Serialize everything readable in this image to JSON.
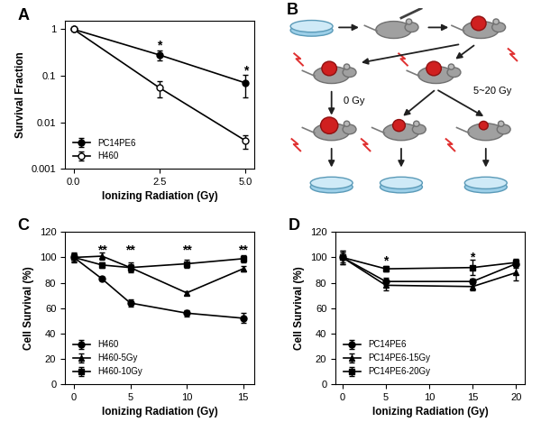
{
  "chart_data": [
    {
      "type": "line",
      "title": "A",
      "x_label": "Ionizing Radiation (Gy)",
      "y_label": "Survival Fraction",
      "log": "y",
      "xlim": [
        -0.25,
        5.25
      ],
      "xticks": [
        {
          "value": 0,
          "label": "0.0"
        },
        {
          "value": 2.5,
          "label": "2.5"
        },
        {
          "value": 5,
          "label": "5.0"
        }
      ],
      "ylim": [
        0.001,
        1.5
      ],
      "yticks": [
        0.001,
        0.01,
        0.1,
        1
      ],
      "legend": "lower left",
      "x": [
        0,
        2.5,
        5
      ],
      "series": [
        {
          "name": "PC14PE6",
          "color": "#000000",
          "marker": "circle",
          "values": [
            1,
            0.28,
            0.07
          ],
          "errors": [
            0.03,
            0.07,
            0.035
          ]
        },
        {
          "name": "H460",
          "color": "#000000",
          "marker": "open_circle",
          "values": [
            1,
            0.055,
            0.004
          ],
          "errors": [
            0.03,
            0.02,
            0.0013
          ]
        }
      ],
      "annotations": [
        {
          "text": "*",
          "x": 2.5,
          "y": 0.45
        },
        {
          "text": "*",
          "x": 5,
          "y": 0.13
        }
      ]
    },
    {
      "type": "diagram",
      "title": "B",
      "labels": [
        "0 Gy",
        "5~20 Gy"
      ]
    },
    {
      "type": "line",
      "title": "C",
      "x_label": "Ionizing Radiation (Gy)",
      "y_label": "Cell Survival (%)",
      "xlim": [
        -0.8,
        16
      ],
      "xticks": [
        0,
        5,
        10,
        15
      ],
      "ylim": [
        0,
        120
      ],
      "yticks": [
        0,
        20,
        40,
        60,
        80,
        100,
        120
      ],
      "legend": "lower left",
      "x": [
        0,
        2.5,
        5,
        10,
        15
      ],
      "series": [
        {
          "name": "H460",
          "color": "#000000",
          "marker": "circle",
          "values": [
            100,
            83,
            64,
            56,
            52
          ],
          "errors": [
            3,
            1.5,
            3,
            2.5,
            4
          ]
        },
        {
          "name": "H460-5Gy",
          "color": "#000000",
          "marker": "triangle",
          "values": [
            100,
            101,
            92,
            72,
            91
          ],
          "errors": [
            3,
            3,
            3,
            1.5,
            2
          ]
        },
        {
          "name": "H460-10Gy",
          "color": "#000000",
          "marker": "square",
          "values": [
            100,
            94,
            92,
            95,
            99
          ],
          "errors": [
            4,
            2,
            4,
            3,
            3
          ]
        }
      ],
      "annotations": [
        {
          "text": "**",
          "x": 2.5,
          "y": 106
        },
        {
          "text": "**",
          "x": 5,
          "y": 106
        },
        {
          "text": "**",
          "x": 10,
          "y": 106
        },
        {
          "text": "**",
          "x": 15,
          "y": 106
        }
      ]
    },
    {
      "type": "line",
      "title": "D",
      "x_label": "Ionizing Radiation (Gy)",
      "y_label": "Cell Survival (%)",
      "xlim": [
        -0.8,
        21
      ],
      "xticks": [
        0,
        5,
        10,
        15,
        20
      ],
      "ylim": [
        0,
        120
      ],
      "yticks": [
        0,
        20,
        40,
        60,
        80,
        100,
        120
      ],
      "legend": "lower left",
      "x": [
        0,
        5,
        15,
        20
      ],
      "series": [
        {
          "name": "PC14PE6",
          "color": "#000000",
          "marker": "circle",
          "values": [
            100,
            81,
            81,
            95
          ],
          "errors": [
            5,
            3,
            2,
            3
          ]
        },
        {
          "name": "PC14PE6-15Gy",
          "color": "#000000",
          "marker": "triangle",
          "values": [
            100,
            78,
            77,
            88
          ],
          "errors": [
            5,
            4,
            3,
            6
          ]
        },
        {
          "name": "PC14PE6-20Gy",
          "color": "#000000",
          "marker": "square",
          "values": [
            100,
            91,
            92,
            96
          ],
          "errors": [
            4,
            2,
            6,
            3
          ]
        }
      ],
      "annotations": [
        {
          "text": "*",
          "x": 5,
          "y": 97
        },
        {
          "text": "*",
          "x": 15,
          "y": 100
        }
      ]
    }
  ]
}
